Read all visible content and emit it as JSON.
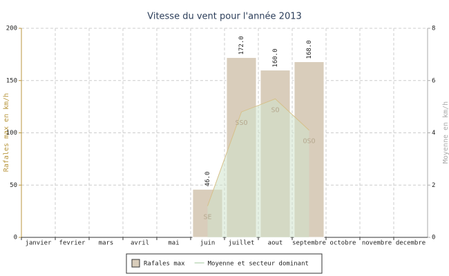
{
  "chart_data": {
    "type": "bar+area",
    "title": "Vitesse du vent pour l'année 2013",
    "ylabel": "Rafales max en km/h",
    "y2label": "Moyenne en km/h",
    "categories": [
      "janvier",
      "fevrier",
      "mars",
      "avril",
      "mai",
      "juin",
      "juillet",
      "aout",
      "septembre",
      "octobre",
      "novembre",
      "decembre"
    ],
    "ylim": [
      0,
      200
    ],
    "yticks": [
      0,
      50,
      100,
      150,
      200
    ],
    "y2lim": [
      0,
      8
    ],
    "y2ticks": [
      0,
      2,
      4,
      6,
      8
    ],
    "grid": true,
    "series": [
      {
        "name": "Rafales max",
        "type": "bar",
        "color": "#d9cdbb",
        "values": [
          null,
          null,
          null,
          null,
          null,
          46,
          172,
          160,
          168,
          null,
          null,
          null
        ],
        "value_labels": [
          null,
          null,
          null,
          null,
          null,
          "46.0",
          "172.0",
          "160.0",
          "168.0",
          null,
          null,
          null
        ]
      },
      {
        "name": "Moyenne et secteur dominant",
        "type": "area",
        "axis": "y2",
        "color": "#cfe3cc",
        "values": [
          null,
          null,
          null,
          null,
          null,
          1.2,
          4.8,
          5.3,
          4.1,
          null,
          null,
          null
        ],
        "sectors": [
          null,
          null,
          null,
          null,
          null,
          "SE",
          "SSO",
          "SO",
          "OSO",
          null,
          null,
          null
        ]
      }
    ]
  }
}
